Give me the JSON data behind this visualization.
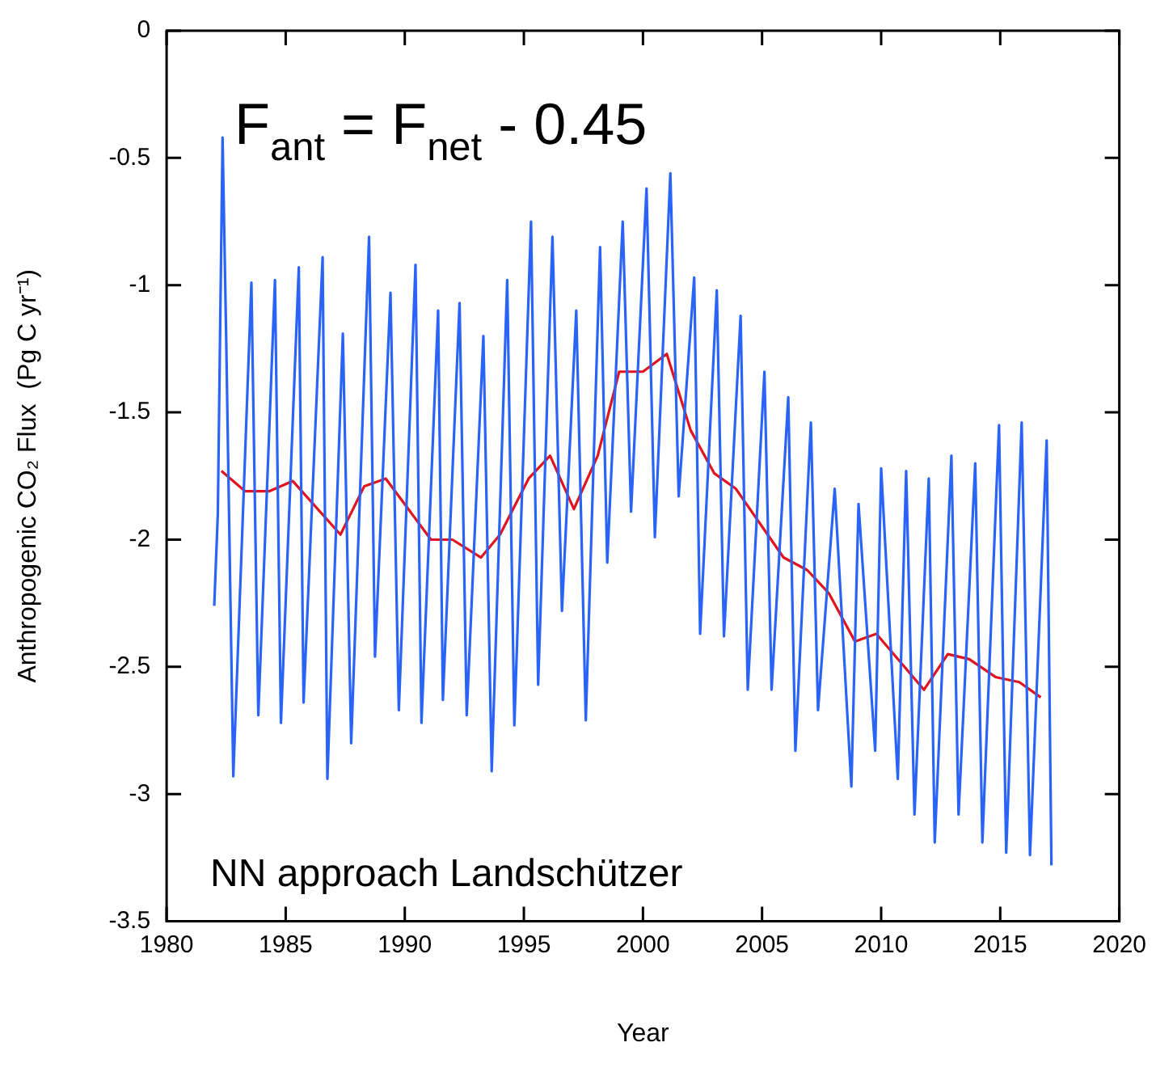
{
  "chart_data": {
    "type": "line",
    "xlabel": "Year",
    "ylabel": "Anthropogenic CO₂ Flux  (Pg C yr⁻¹)",
    "annotations": [
      "F$_{ant}$ = F$_{net}$ - 0.45",
      "NN approach Landschützer"
    ],
    "xlim": [
      1980,
      2020
    ],
    "xticks": [
      1980,
      1985,
      1990,
      1995,
      2000,
      2005,
      2010,
      2015,
      2020
    ],
    "ylim": [
      -3.5,
      0
    ],
    "yticks": [
      -3.5,
      -3,
      -2.5,
      -2,
      -1.5,
      -1,
      -0.5,
      0
    ],
    "grid": false,
    "legend": false,
    "marker": "none",
    "line_style": "solid",
    "series": [
      {
        "color": "#2a64f6",
        "x": [
          1982.0,
          1982.15,
          1982.35,
          1982.5,
          1982.8,
          1983.56,
          1983.85,
          1984.55,
          1984.8,
          1985.55,
          1985.75,
          1986.55,
          1986.75,
          1987.4,
          1987.75,
          1988.5,
          1988.75,
          1989.4,
          1989.75,
          1990.45,
          1990.7,
          1991.4,
          1991.6,
          1992.3,
          1992.6,
          1993.3,
          1993.65,
          1994.3,
          1994.6,
          1995.3,
          1995.6,
          1996.2,
          1996.6,
          1997.2,
          1997.6,
          1998.2,
          1998.5,
          1999.15,
          1999.5,
          2000.15,
          2000.5,
          2001.15,
          2001.5,
          2002.15,
          2002.4,
          2003.1,
          2003.4,
          2004.1,
          2004.4,
          2005.1,
          2005.4,
          2006.1,
          2006.4,
          2007.05,
          2007.35,
          2008.05,
          2008.75,
          2009.05,
          2009.75,
          2010.0,
          2010.7,
          2011.05,
          2011.4,
          2012.0,
          2012.25,
          2012.95,
          2013.25,
          2013.95,
          2014.25,
          2014.95,
          2015.25,
          2015.9,
          2016.25,
          2016.95,
          2017.15
        ],
        "values": [
          -2.26,
          -1.9,
          -0.42,
          -1.2,
          -2.93,
          -0.99,
          -2.69,
          -0.98,
          -2.72,
          -0.93,
          -2.64,
          -0.89,
          -2.94,
          -1.19,
          -2.8,
          -0.81,
          -2.46,
          -1.03,
          -2.67,
          -0.92,
          -2.72,
          -1.1,
          -2.63,
          -1.07,
          -2.69,
          -1.2,
          -2.91,
          -0.98,
          -2.73,
          -0.75,
          -2.57,
          -0.81,
          -2.28,
          -1.1,
          -2.71,
          -0.85,
          -2.09,
          -0.75,
          -1.89,
          -0.62,
          -1.99,
          -0.56,
          -1.83,
          -0.97,
          -2.37,
          -1.02,
          -2.38,
          -1.12,
          -2.59,
          -1.34,
          -2.59,
          -1.44,
          -2.83,
          -1.54,
          -2.67,
          -1.8,
          -2.97,
          -1.86,
          -2.83,
          -1.72,
          -2.94,
          -1.73,
          -3.08,
          -1.76,
          -3.19,
          -1.67,
          -3.08,
          -1.7,
          -3.19,
          -1.55,
          -3.23,
          -1.54,
          -3.24,
          -1.61,
          -3.28
        ]
      },
      {
        "color": "#e0141e",
        "x": [
          1982.3,
          1983.3,
          1984.3,
          1985.3,
          1987.3,
          1988.3,
          1989.2,
          1991.1,
          1992.0,
          1993.2,
          1994.0,
          1995.2,
          1996.1,
          1997.1,
          1998.1,
          1999.0,
          2000.0,
          2001.0,
          2002.0,
          2003.0,
          2003.9,
          2005.9,
          2006.9,
          2007.8,
          2008.9,
          2009.8,
          2011.8,
          2012.8,
          2013.7,
          2014.8,
          2015.8,
          2016.7
        ],
        "values": [
          -1.73,
          -1.81,
          -1.81,
          -1.77,
          -1.98,
          -1.79,
          -1.76,
          -2.0,
          -2.0,
          -2.07,
          -1.98,
          -1.76,
          -1.67,
          -1.88,
          -1.67,
          -1.34,
          -1.34,
          -1.27,
          -1.57,
          -1.74,
          -1.8,
          -2.07,
          -2.12,
          -2.21,
          -2.4,
          -2.37,
          -2.59,
          -2.45,
          -2.47,
          -2.54,
          -2.56,
          -2.62
        ]
      }
    ]
  }
}
